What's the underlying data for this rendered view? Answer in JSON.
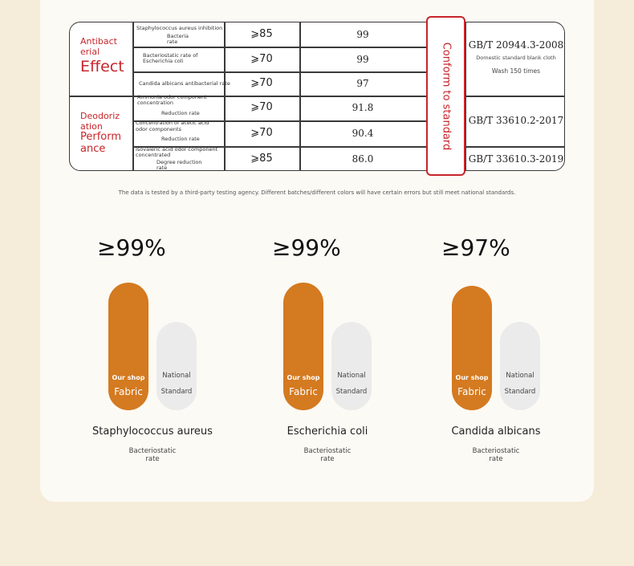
{
  "table": {
    "categories": [
      {
        "line1": "Antibact",
        "line2": "erial",
        "big": "Effect"
      },
      {
        "line1": "Deodoriz",
        "line2": "ation",
        "line3": "Perform",
        "line4": "ance"
      }
    ],
    "rows": [
      {
        "label_a": "Staphylococcus aureus inhibition",
        "label_b": "Bacteria",
        "label_c": "rate",
        "req": "⩾85",
        "value": "99"
      },
      {
        "label_a": "Bacteriostatic rate of",
        "label_b": "Escherichia coli",
        "label_c": "",
        "req": "⩾70",
        "value": "99"
      },
      {
        "label_a": "Candida albicans antibacterial rate",
        "label_b": "",
        "label_c": "",
        "req": "⩾70",
        "value": "97"
      },
      {
        "label_a": "Ammonia odor component",
        "label_b": "concentration",
        "label_c": "Reduction rate",
        "req": "⩾70",
        "value": "91.8"
      },
      {
        "label_a": "Concentration of acetic acid",
        "label_b": "odor components",
        "label_c": "Reduction rate",
        "req": "⩾70",
        "value": "90.4"
      },
      {
        "label_a": "Isovaleric acid odor component",
        "label_b": "concentrated",
        "label_c": "Degree reduction",
        "label_d": "rate",
        "req": "⩾85",
        "value": "86.0"
      }
    ],
    "conform": "Conform to standard",
    "standards": {
      "s1": "GB/T 20944.3-2008",
      "s1_note1": "Domestic standard blank cloth",
      "s1_note2": "Wash 150 times",
      "s2": "GB/T 33610.2-2017",
      "s3": "GB/T 33610.3-2019"
    }
  },
  "note": "The data is tested by a third-party testing agency. Different batches/different colors will have certain errors but still meet national standards.",
  "charts": [
    {
      "pct": "≥99%",
      "value": 99,
      "ours_a": "Our shop",
      "ours_b": "Fabric",
      "nat_a": "National",
      "nat_b": "Standard",
      "name": "Staphylococcus aureus",
      "sub_a": "Bacteriostatic",
      "sub_b": "rate"
    },
    {
      "pct": "≥99%",
      "value": 99,
      "ours_a": "Our shop",
      "ours_b": "Fabric",
      "nat_a": "National",
      "nat_b": "Standard",
      "name": "Escherichia coli",
      "sub_a": "Bacteriostatic",
      "sub_b": "rate"
    },
    {
      "pct": "≥97%",
      "value": 97,
      "ours_a": "Our shop",
      "ours_b": "Fabric",
      "nat_a": "National",
      "nat_b": "Standard",
      "name": "Candida albicans",
      "sub_a": "Bacteriostatic",
      "sub_b": "rate"
    }
  ],
  "colors": {
    "accent": "#d47a20",
    "red": "#c7252a",
    "gray": "#ebebeb"
  }
}
